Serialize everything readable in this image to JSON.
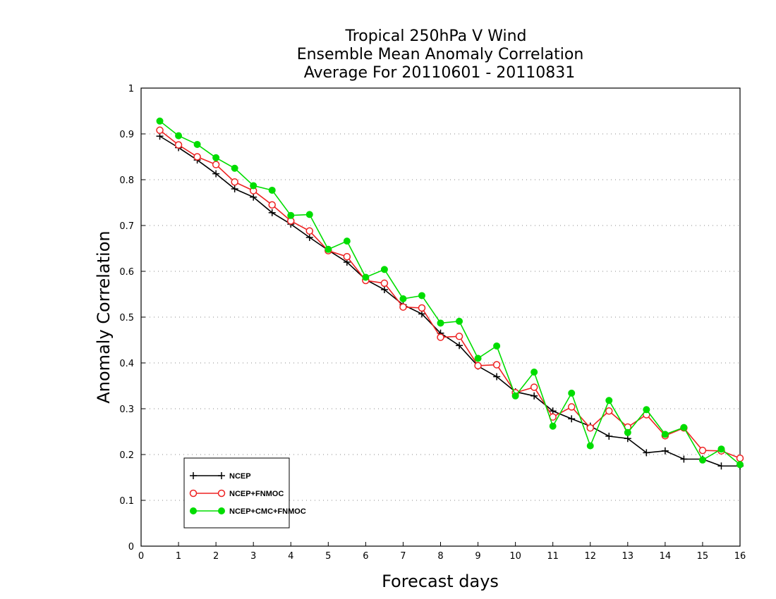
{
  "chart_data": {
    "type": "line",
    "title": [
      "Tropical 250hPa V Wind",
      "Ensemble Mean Anomaly Correlation",
      "Average For 20110601 - 20110831"
    ],
    "xlabel": "Forecast days",
    "ylabel": "Anomaly Correlation",
    "xlim": [
      0,
      16
    ],
    "ylim": [
      0,
      1
    ],
    "x_ticks": [
      "0",
      "1",
      "2",
      "3",
      "4",
      "5",
      "6",
      "7",
      "8",
      "9",
      "10",
      "11",
      "12",
      "13",
      "14",
      "15",
      "16"
    ],
    "y_ticks": [
      "0",
      "0.1",
      "0.2",
      "0.3",
      "0.4",
      "0.5",
      "0.6",
      "0.7",
      "0.8",
      "0.9",
      "1"
    ],
    "grid": "horizontal-dotted",
    "legend_position": "bottom-left",
    "x": [
      0.5,
      1,
      1.5,
      2,
      2.5,
      3,
      3.5,
      4,
      4.5,
      5,
      5.5,
      6,
      6.5,
      7,
      7.5,
      8,
      8.5,
      9,
      9.5,
      10,
      10.5,
      11,
      11.5,
      12,
      12.5,
      13,
      13.5,
      14,
      14.5,
      15,
      15.5,
      16
    ],
    "series": [
      {
        "name": "NCEP",
        "color": "#000000",
        "marker": "plus",
        "values": [
          0.895,
          0.87,
          0.843,
          0.813,
          0.78,
          0.762,
          0.728,
          0.703,
          0.674,
          0.646,
          0.62,
          0.582,
          0.56,
          0.527,
          0.507,
          0.465,
          0.438,
          0.393,
          0.37,
          0.337,
          0.328,
          0.295,
          0.278,
          0.262,
          0.24,
          0.235,
          0.204,
          0.208,
          0.19,
          0.19,
          0.175,
          0.175
        ]
      },
      {
        "name": "NCEP+FNMOC",
        "color": "#ee2222",
        "marker": "open-circle",
        "values": [
          0.908,
          0.876,
          0.85,
          0.833,
          0.795,
          0.776,
          0.745,
          0.71,
          0.688,
          0.645,
          0.632,
          0.58,
          0.574,
          0.522,
          0.52,
          0.456,
          0.458,
          0.394,
          0.396,
          0.335,
          0.347,
          0.282,
          0.304,
          0.258,
          0.295,
          0.26,
          0.287,
          0.241,
          0.258,
          0.209,
          0.208,
          0.192
        ]
      },
      {
        "name": "NCEP+CMC+FNMOC",
        "color": "#00dd00",
        "marker": "filled-circle",
        "values": [
          0.928,
          0.896,
          0.877,
          0.848,
          0.825,
          0.787,
          0.777,
          0.722,
          0.724,
          0.648,
          0.666,
          0.587,
          0.604,
          0.54,
          0.547,
          0.487,
          0.491,
          0.41,
          0.437,
          0.328,
          0.38,
          0.262,
          0.334,
          0.219,
          0.318,
          0.248,
          0.298,
          0.244,
          0.259,
          0.188,
          0.212,
          0.178
        ]
      }
    ]
  }
}
